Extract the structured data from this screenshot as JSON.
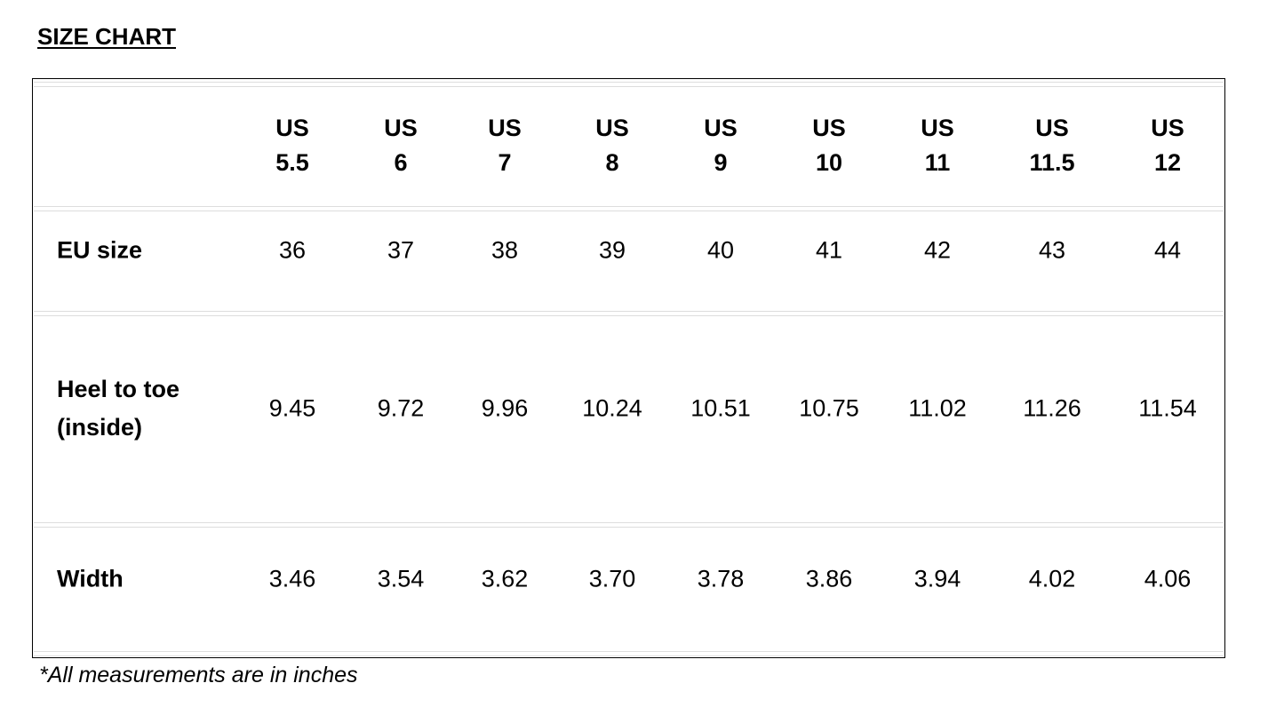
{
  "title": "SIZE CHART",
  "table": {
    "columns": [
      [
        "US",
        "5.5"
      ],
      [
        "US",
        "6"
      ],
      [
        "US",
        "7"
      ],
      [
        "US",
        "8"
      ],
      [
        "US",
        "9"
      ],
      [
        "US",
        "10"
      ],
      [
        "US",
        "11"
      ],
      [
        "US",
        "11.5"
      ],
      [
        "US",
        "12"
      ]
    ],
    "rows": [
      {
        "label": [
          "EU size"
        ],
        "cells": [
          "36",
          "37",
          "38",
          "39",
          "40",
          "41",
          "42",
          "43",
          "44"
        ]
      },
      {
        "label": [
          "Heel to toe",
          "(inside)"
        ],
        "cells": [
          "9.45",
          "9.72",
          "9.96",
          "10.24",
          "10.51",
          "10.75",
          "11.02",
          "11.26",
          "11.54"
        ]
      },
      {
        "label": [
          "Width"
        ],
        "cells": [
          "3.46",
          "3.54",
          "3.62",
          "3.70",
          "3.78",
          "3.86",
          "3.94",
          "4.02",
          "4.06"
        ]
      }
    ]
  },
  "footnote": "*All measurements are in inches"
}
